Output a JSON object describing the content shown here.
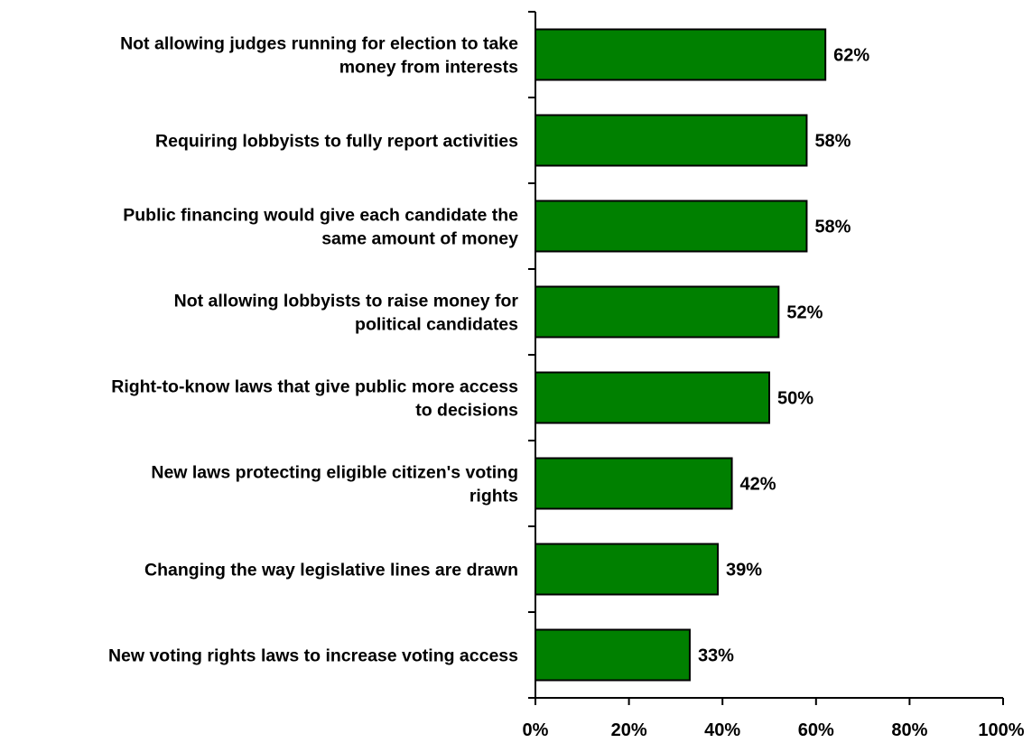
{
  "chart_data": {
    "type": "bar",
    "orientation": "horizontal",
    "categories": [
      [
        "Not allowing judges running for election to take",
        "money from interests"
      ],
      [
        "Requiring lobbyists to fully report activities"
      ],
      [
        "Public financing would give each candidate the",
        "same amount of money"
      ],
      [
        "Not allowing lobbyists to raise money for",
        "political candidates"
      ],
      [
        "Right-to-know laws that give public more access",
        "to decisions"
      ],
      [
        "New laws protecting eligible citizen's voting",
        "rights"
      ],
      [
        "Changing the way legislative lines are drawn"
      ],
      [
        "New voting rights laws to increase voting access"
      ]
    ],
    "values": [
      62,
      58,
      58,
      52,
      50,
      42,
      39,
      33
    ],
    "value_labels": [
      "62%",
      "58%",
      "58%",
      "52%",
      "50%",
      "42%",
      "39%",
      "33%"
    ],
    "xlim": [
      0,
      100
    ],
    "x_ticks": [
      0,
      20,
      40,
      60,
      80,
      100
    ],
    "x_tick_labels": [
      "0%",
      "20%",
      "40%",
      "60%",
      "80%",
      "100%"
    ],
    "bar_color": "#008000",
    "bar_edge_color": "#000000",
    "grid": false,
    "legend": "none"
  }
}
